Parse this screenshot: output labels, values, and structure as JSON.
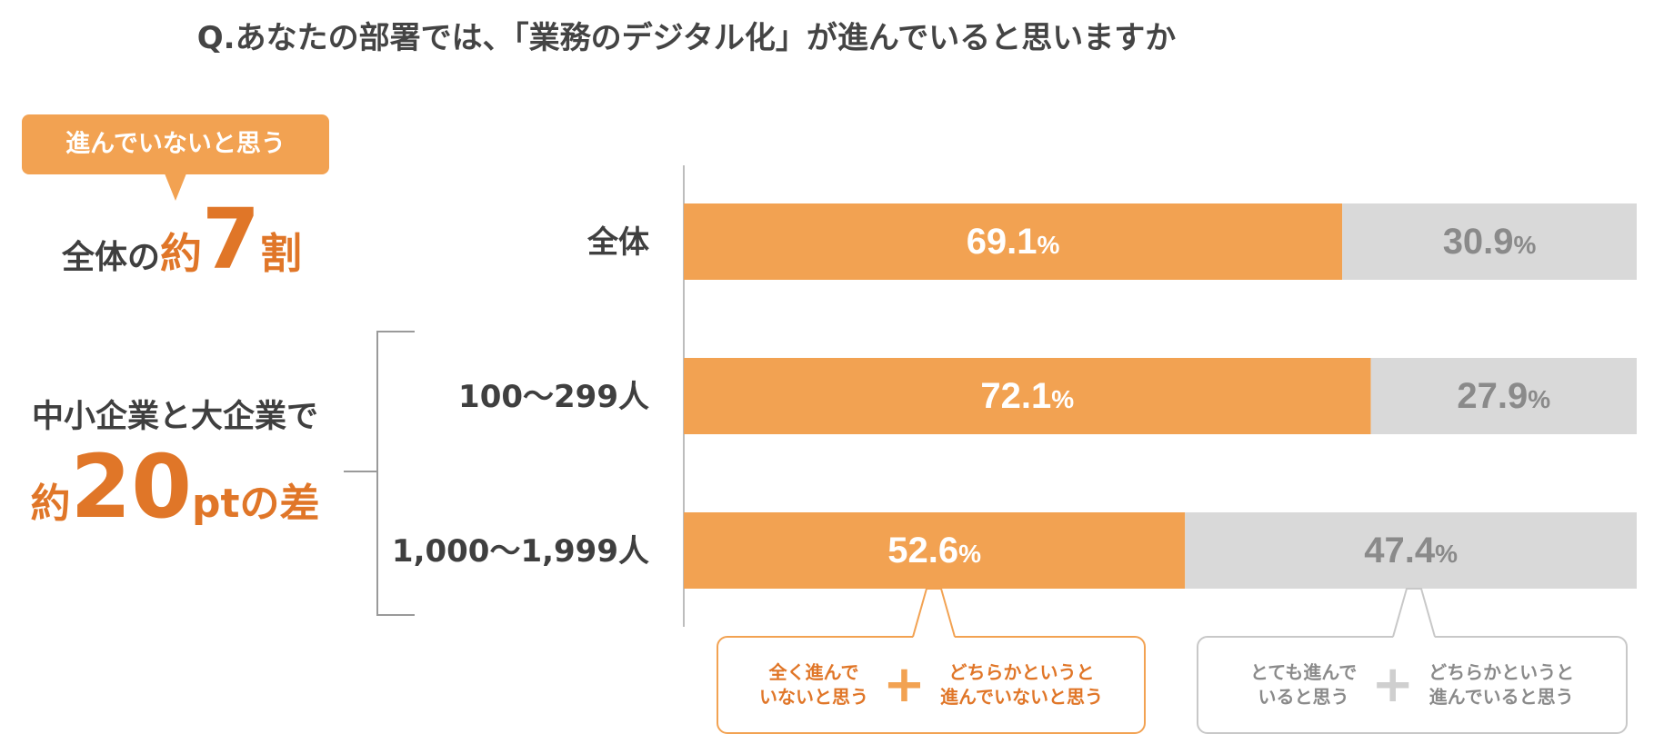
{
  "title": "Q.あなたの部署では、「業務のデジタル化」が進んでいると思いますか",
  "left_panel": {
    "callout_label": "進んでいないと思う",
    "headline1_prefix": "全体の",
    "headline1_approx": "約",
    "headline1_number": "7",
    "headline1_unit": "割",
    "headline2_line1": "中小企業と大企業で",
    "headline2_approx": "約",
    "headline2_number": "20",
    "headline2_unit": "ptの差"
  },
  "legend": {
    "orange_part1": "全く進んで\nいないと思う",
    "orange_plus": "+",
    "orange_part2": "どちらかというと\n進んでいないと思う",
    "gray_part1": "とても進んで\nいると思う",
    "gray_plus": "+",
    "gray_part2": "どちらかというと\n進んでいると思う"
  },
  "chart_data": {
    "type": "bar",
    "orientation": "horizontal",
    "stacked": true,
    "categories": [
      "全体",
      "100〜299人",
      "1,000〜1,999人"
    ],
    "series": [
      {
        "values": [
          69.1,
          72.1,
          52.6
        ],
        "color": "#f2a252"
      },
      {
        "values": [
          30.9,
          27.9,
          47.4
        ],
        "color": "#d9d9d9"
      }
    ],
    "value_suffix": "%",
    "xlim": [
      0,
      100
    ],
    "label_colors": {
      "orange": "#ffffff",
      "gray": "#8a8a8a"
    }
  }
}
